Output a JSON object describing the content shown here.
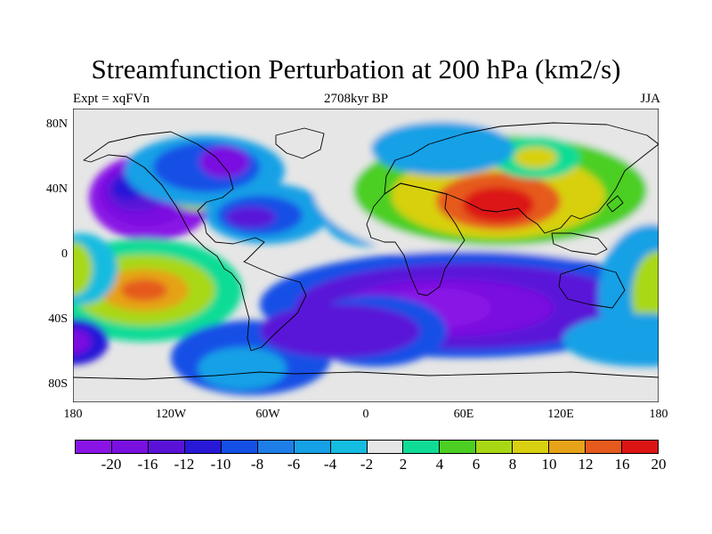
{
  "title": "Streamfunction Perturbation at 200 hPa (km2/s)",
  "left_label": "Expt = xqFVn",
  "center_label": "2708kyr BP",
  "right_label": "JJA",
  "lat_ticks": [
    "80N",
    "40N",
    "0",
    "40S",
    "80S"
  ],
  "lon_ticks": [
    "180",
    "120W",
    "60W",
    "0",
    "60E",
    "120E",
    "180"
  ],
  "colorbar": {
    "labels": [
      "-20",
      "-16",
      "-12",
      "-10",
      "-8",
      "-6",
      "-4",
      "-2",
      "2",
      "4",
      "6",
      "8",
      "10",
      "12",
      "16",
      "20"
    ],
    "colors": [
      "#8a14e6",
      "#7a10e0",
      "#5a12d8",
      "#2818d8",
      "#1450e6",
      "#1e7ee8",
      "#16a0e6",
      "#14bce0",
      "#e6e6e6",
      "#10dc96",
      "#4ccf22",
      "#a8d814",
      "#d8d010",
      "#e6a218",
      "#e65a1e",
      "#dc1414"
    ]
  }
}
